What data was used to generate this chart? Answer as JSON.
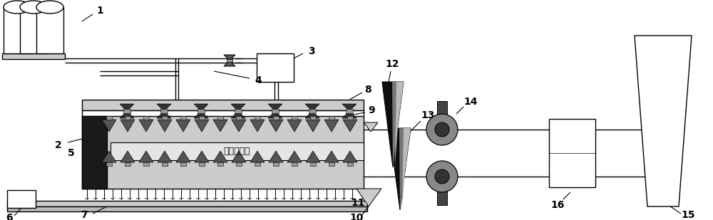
{
  "bg_color": "#ffffff",
  "line_color": "#000000",
  "gray_light": "#cccccc",
  "gray_medium": "#999999",
  "gray_dark": "#555555",
  "gray_darker": "#222222",
  "text_chinese": "高温热风罩",
  "label_color": "#000000",
  "label_fontsize": 10,
  "fig_width": 10.0,
  "fig_height": 3.09,
  "dpi": 100
}
